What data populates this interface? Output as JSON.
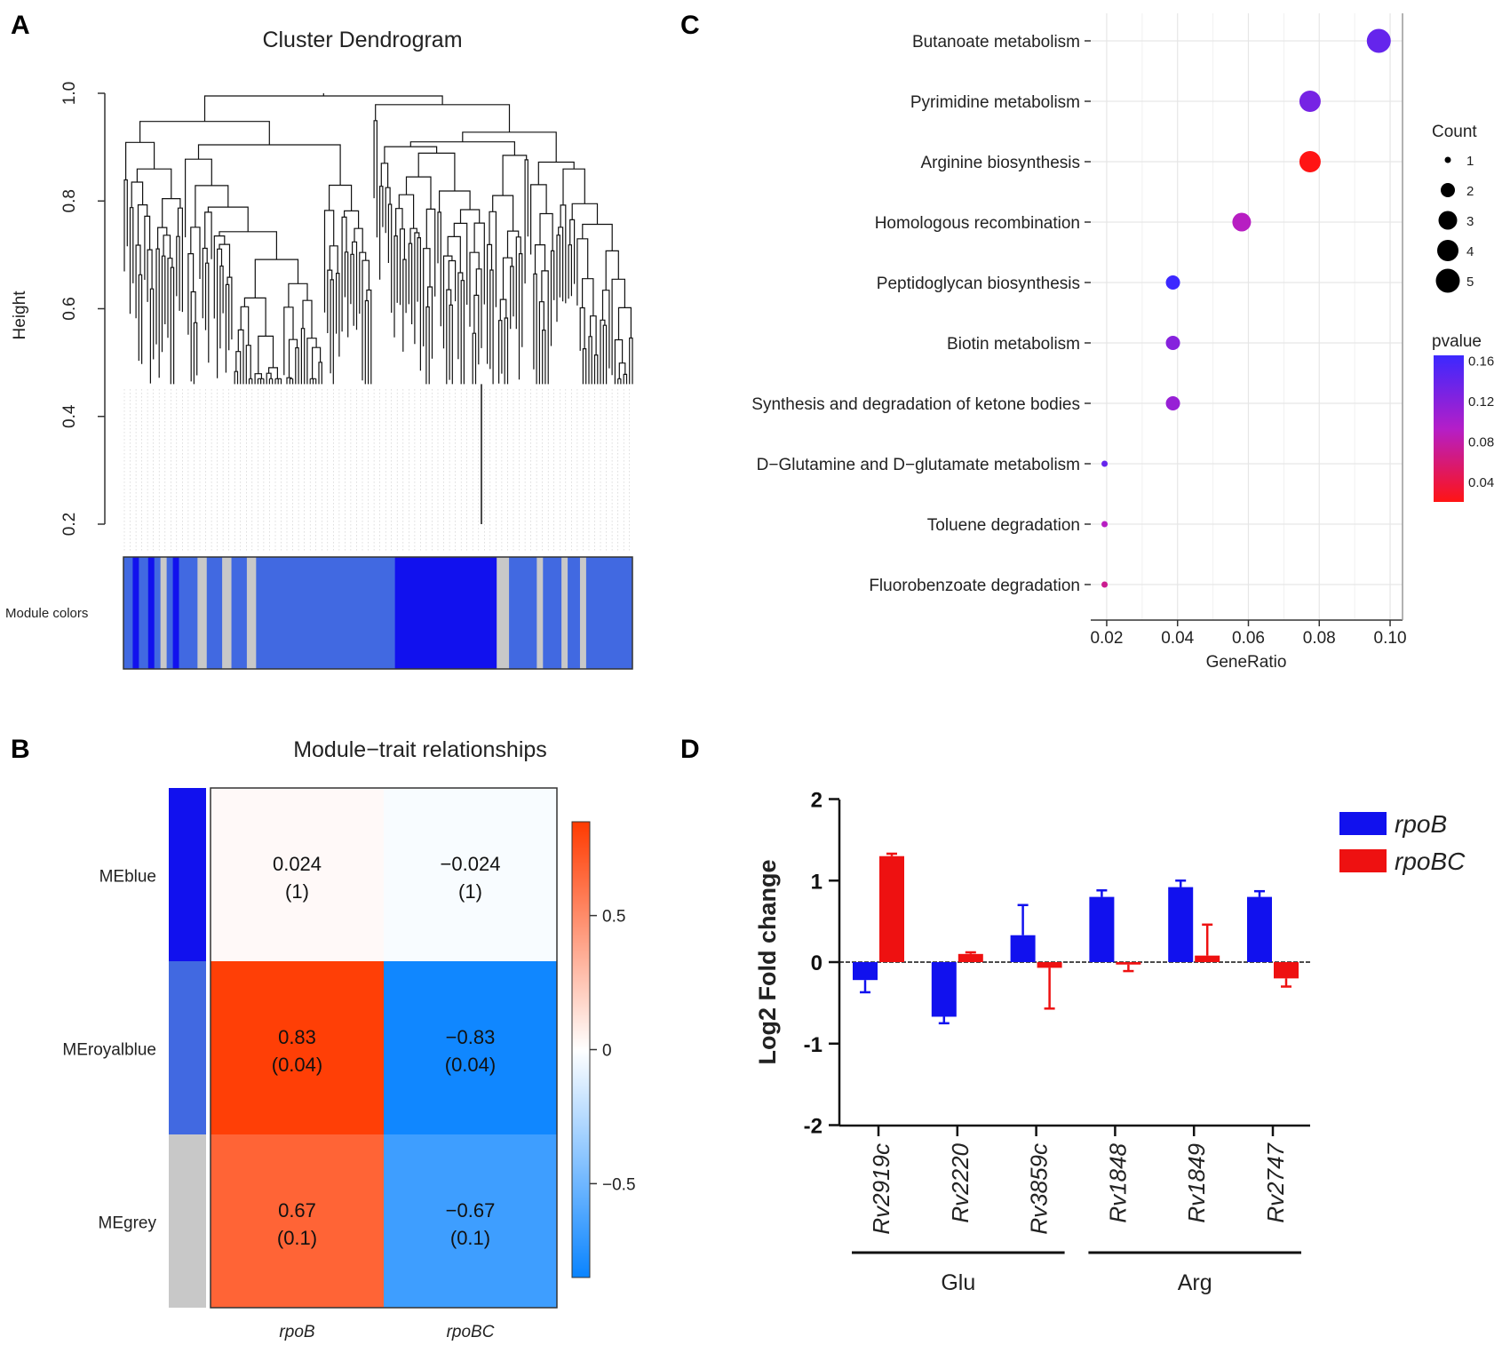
{
  "figure": {
    "panel_labels": {
      "a": "A",
      "b": "B",
      "c": "C",
      "d": "D"
    },
    "colors": {
      "blue": "#1111ee",
      "red": "#ee1111",
      "royalblue": "#4169e1",
      "grey": "#c8c8c8"
    }
  },
  "chart_data": [
    {
      "id": "A",
      "type": "dendrogram",
      "title": "Cluster Dendrogram",
      "ylabel": "Height",
      "ylim": [
        0.2,
        1.0
      ],
      "yticks": [
        "0.2",
        "0.4",
        "0.6",
        "0.8",
        "1.0"
      ],
      "yticks_values": [
        0.2,
        0.4,
        0.6,
        0.8,
        1.0
      ],
      "module_label": "Module colors",
      "module_blocks": [
        {
          "color": "royalblue",
          "weight": 3
        },
        {
          "color": "blue",
          "weight": 2
        },
        {
          "color": "royalblue",
          "weight": 3
        },
        {
          "color": "blue",
          "weight": 2
        },
        {
          "color": "royalblue",
          "weight": 2
        },
        {
          "color": "grey",
          "weight": 2
        },
        {
          "color": "royalblue",
          "weight": 2
        },
        {
          "color": "blue",
          "weight": 2
        },
        {
          "color": "royalblue",
          "weight": 6
        },
        {
          "color": "grey",
          "weight": 3
        },
        {
          "color": "royalblue",
          "weight": 5
        },
        {
          "color": "grey",
          "weight": 3
        },
        {
          "color": "royalblue",
          "weight": 5
        },
        {
          "color": "grey",
          "weight": 3
        },
        {
          "color": "royalblue",
          "weight": 45
        },
        {
          "color": "blue",
          "weight": 33
        },
        {
          "color": "grey",
          "weight": 4
        },
        {
          "color": "royalblue",
          "weight": 9
        },
        {
          "color": "grey",
          "weight": 2
        },
        {
          "color": "royalblue",
          "weight": 6
        },
        {
          "color": "grey",
          "weight": 2
        },
        {
          "color": "royalblue",
          "weight": 4
        },
        {
          "color": "grey",
          "weight": 2
        },
        {
          "color": "royalblue",
          "weight": 15
        }
      ]
    },
    {
      "id": "B",
      "type": "heatmap",
      "title": "Module−trait relationships",
      "rows": [
        "MEblue",
        "MEroyalblue",
        "MEgrey"
      ],
      "row_colors": [
        "blue",
        "royalblue",
        "grey"
      ],
      "cols": [
        "rpoB",
        "rpoBC"
      ],
      "values": [
        [
          0.024,
          -0.024
        ],
        [
          0.83,
          -0.83
        ],
        [
          0.67,
          -0.67
        ]
      ],
      "cell_text": [
        [
          "0.024",
          "−0.024"
        ],
        [
          "0.83",
          "−0.83"
        ],
        [
          "0.67",
          "−0.67"
        ]
      ],
      "pvalue_text": [
        [
          "(1)",
          "(1)"
        ],
        [
          "(0.04)",
          "(0.04)"
        ],
        [
          "(0.1)",
          "(0.1)"
        ]
      ],
      "colorbar_ticks": [
        "0.5",
        "0",
        "−0.5"
      ],
      "colorbar_tick_values": [
        0.5,
        0,
        -0.5
      ],
      "colorbar_range": [
        -0.85,
        0.85
      ]
    },
    {
      "id": "C",
      "type": "scatter",
      "xlabel": "GeneRatio",
      "xlim": [
        0.0155,
        0.1035
      ],
      "xticks": [
        "0.02",
        "0.04",
        "0.06",
        "0.08",
        "0.10"
      ],
      "xticks_values": [
        0.02,
        0.04,
        0.06,
        0.08,
        0.1
      ],
      "categories": [
        "Butanoate metabolism",
        "Pyrimidine metabolism",
        "Arginine biosynthesis",
        "Homologous recombination",
        "Peptidoglycan biosynthesis",
        "Biotin metabolism",
        "Synthesis and degradation of ketone bodies",
        "D−Glutamine and D−glutamate metabolism",
        "Toluene degradation",
        "Fluorobenzoate degradation"
      ],
      "gene_ratio": [
        0.0968,
        0.0774,
        0.0774,
        0.0581,
        0.0387,
        0.0387,
        0.0387,
        0.0194,
        0.0194,
        0.0194
      ],
      "count": [
        5,
        4,
        4,
        3,
        2,
        2,
        2,
        1,
        1,
        1
      ],
      "pvalue": [
        0.14,
        0.13,
        0.02,
        0.09,
        0.165,
        0.12,
        0.11,
        0.14,
        0.09,
        0.07
      ],
      "size_legend": {
        "title": "Count",
        "labels": [
          "1",
          "2",
          "3",
          "4",
          "5"
        ],
        "values": [
          1,
          2,
          3,
          4,
          5
        ]
      },
      "color_legend": {
        "title": "pvalue",
        "labels": [
          "0.16",
          "0.12",
          "0.08",
          "0.04"
        ],
        "values": [
          0.16,
          0.12,
          0.08,
          0.04
        ],
        "range": [
          0.02,
          0.165
        ]
      }
    },
    {
      "id": "D",
      "type": "bar",
      "ylabel": "Log2 Fold change",
      "ylim": [
        -2,
        2
      ],
      "yticks": [
        "-2",
        "-1",
        "0",
        "1",
        "2"
      ],
      "yticks_values": [
        -2,
        -1,
        0,
        1,
        2
      ],
      "categories": [
        "Rv2919c",
        "Rv2220",
        "Rv3859c",
        "Rv1848",
        "Rv1849",
        "Rv2747"
      ],
      "series": [
        {
          "name": "rpoB",
          "color": "blue",
          "values": [
            -0.22,
            -0.67,
            0.33,
            0.8,
            0.92,
            0.8
          ],
          "errors": [
            0.15,
            0.08,
            0.37,
            0.08,
            0.08,
            0.07
          ]
        },
        {
          "name": "rpoBC",
          "color": "red",
          "values": [
            1.3,
            0.1,
            -0.07,
            -0.03,
            0.08,
            -0.2
          ],
          "errors": [
            0.03,
            0.02,
            0.5,
            0.08,
            0.38,
            0.1
          ]
        }
      ],
      "groups": [
        {
          "label": "Glu",
          "from": 0,
          "to": 2
        },
        {
          "label": "Arg",
          "from": 3,
          "to": 5
        }
      ]
    }
  ]
}
